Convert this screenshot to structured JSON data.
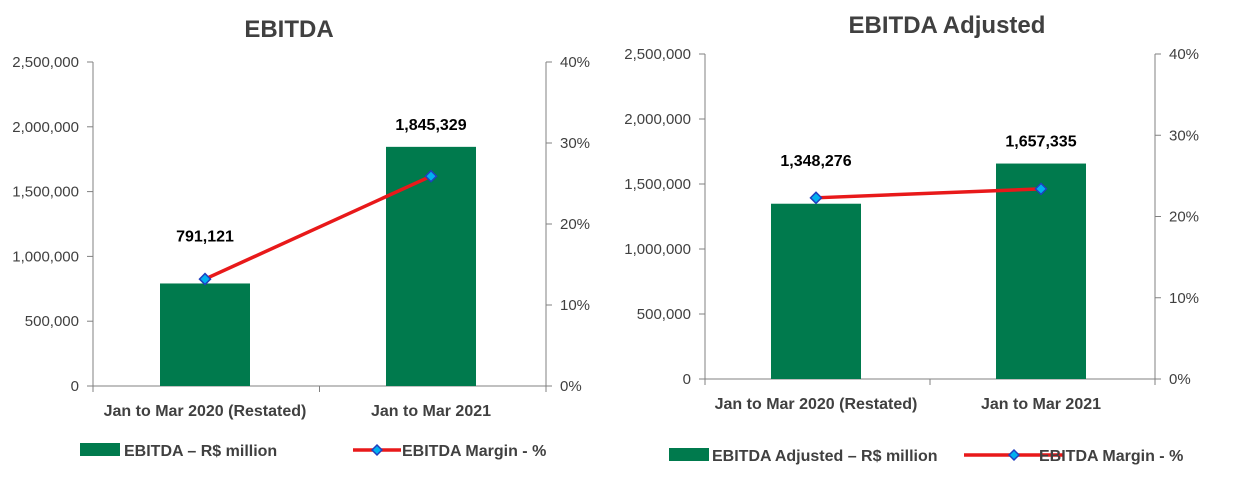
{
  "colors": {
    "bar": "#007A4D",
    "line": "#E8191A",
    "marker_fill": "#00B0F0",
    "marker_stroke": "#1F3FBF",
    "axis": "#808080",
    "text": "#404040",
    "label": "#000000"
  },
  "chart_data": [
    {
      "type": "bar",
      "title": "EBITDA",
      "categories": [
        "Jan to Mar 2020 (Restated)",
        "Jan to Mar 2021"
      ],
      "series": [
        {
          "name": "EBITDA  – R$ million",
          "kind": "bar",
          "axis": "left",
          "values": [
            791121,
            1845329
          ],
          "data_labels": [
            "791,121",
            "1,845,329"
          ]
        },
        {
          "name": "EBITDA Margin - %",
          "kind": "line",
          "axis": "right",
          "values": [
            13.2,
            25.9
          ]
        }
      ],
      "ylim": [
        0,
        2500000
      ],
      "y_ticks": [
        0,
        500000,
        1000000,
        1500000,
        2000000,
        2500000
      ],
      "y_tick_labels": [
        "0",
        "500,000",
        "1,000,000",
        "1,500,000",
        "2,000,000",
        "2,500,000"
      ],
      "y2lim": [
        0,
        40
      ],
      "y2_ticks": [
        0,
        10,
        20,
        30,
        40
      ],
      "y2_tick_labels": [
        "0%",
        "10%",
        "20%",
        "30%",
        "40%"
      ],
      "legend_position": "bottom",
      "grid": false
    },
    {
      "type": "bar",
      "title": "EBITDA Adjusted",
      "categories": [
        "Jan to Mar 2020 (Restated)",
        "Jan to Mar 2021"
      ],
      "series": [
        {
          "name": "EBITDA Adjusted  – R$ million",
          "kind": "bar",
          "axis": "left",
          "values": [
            1348276,
            1657335
          ],
          "data_labels": [
            "1,348,276",
            "1,657,335"
          ]
        },
        {
          "name": "EBITDA Margin - %",
          "kind": "line",
          "axis": "right",
          "values": [
            22.3,
            23.4
          ]
        }
      ],
      "ylim": [
        0,
        2500000
      ],
      "y_ticks": [
        0,
        500000,
        1000000,
        1500000,
        2000000,
        2500000
      ],
      "y_tick_labels": [
        "0",
        "500,000",
        "1,000,000",
        "1,500,000",
        "2,000,000",
        "2,500,000"
      ],
      "y2lim": [
        0,
        40
      ],
      "y2_ticks": [
        0,
        10,
        20,
        30,
        40
      ],
      "y2_tick_labels": [
        "0%",
        "10%",
        "20%",
        "30%",
        "40%"
      ],
      "legend_position": "bottom",
      "grid": false
    }
  ]
}
